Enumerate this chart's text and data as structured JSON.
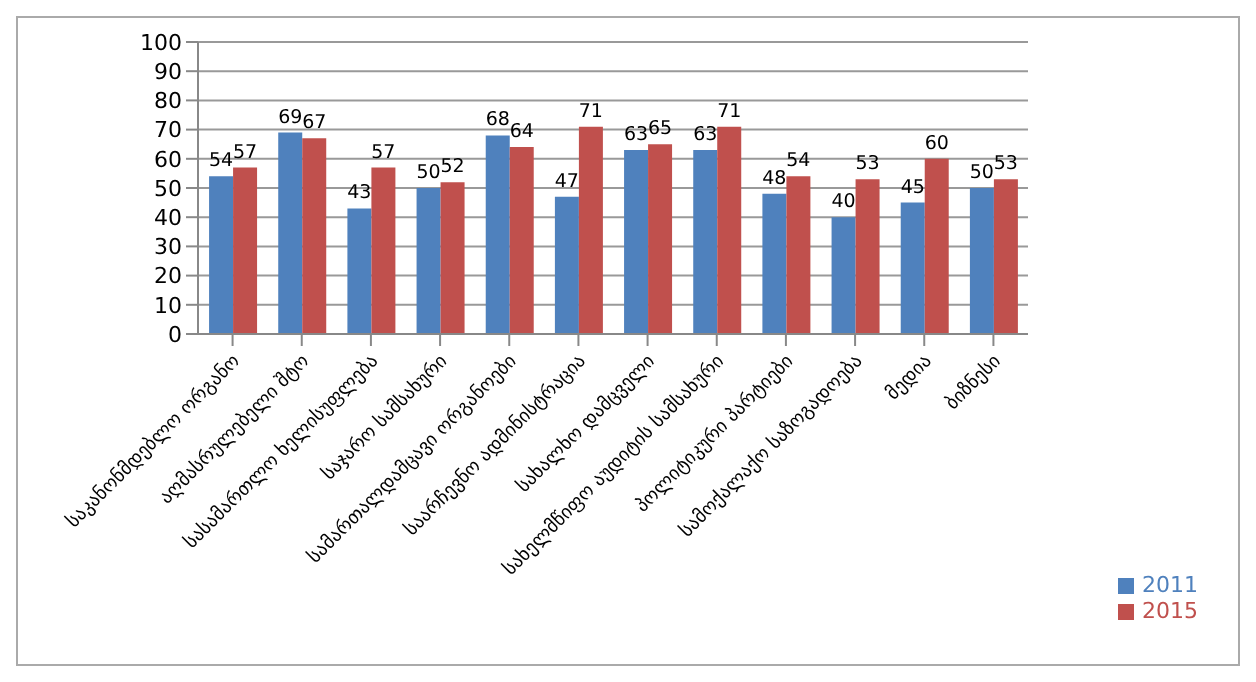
{
  "chart_data": {
    "type": "bar",
    "categories": [
      "საკანონმდებლო ორგანო",
      "აღმასრულებელი შტო",
      "სასამართლო ხელისუფლება",
      "საჯარო სამსახური",
      "სამართალდამცავი ორგანოები",
      "საარჩევნო ადმინისტრაცია",
      "სახალხო დამცველი",
      "სახელმწიფო აუდიტის სამსახური",
      "პოლიტიკური პარტიები",
      "სამოქალაქო საზოგადოება",
      "მედია",
      "ბიზნესი"
    ],
    "series": [
      {
        "name": "2011",
        "color": "#4f81bd",
        "values": [
          54,
          69,
          43,
          50,
          68,
          47,
          63,
          63,
          48,
          40,
          45,
          50
        ]
      },
      {
        "name": "2015",
        "color": "#c0504d",
        "values": [
          57,
          67,
          57,
          52,
          64,
          71,
          65,
          71,
          54,
          53,
          60,
          53
        ]
      }
    ],
    "ylim": [
      0,
      100
    ],
    "yticks": [
      0,
      10,
      20,
      30,
      40,
      50,
      60,
      70,
      80,
      90,
      100
    ],
    "grid": "y",
    "legend": "right",
    "data_labels": true
  }
}
